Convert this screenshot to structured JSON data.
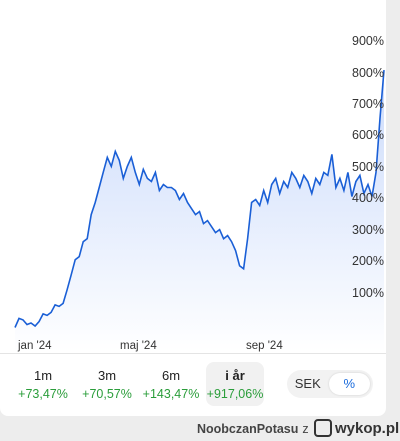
{
  "chart_data": {
    "type": "line",
    "y_unit": "%",
    "ylim": [
      -20,
      920
    ],
    "y_ticks": [
      "900%",
      "800%",
      "700%",
      "600%",
      "500%",
      "400%",
      "300%",
      "200%",
      "100%"
    ],
    "x_ticks": [
      "jan '24",
      "maj '24",
      "sep '24"
    ],
    "grid": false,
    "series": [
      {
        "x": [
          0,
          1,
          2,
          3,
          4,
          5,
          6,
          7,
          8,
          9,
          10,
          11,
          12,
          13,
          14,
          15,
          16,
          17,
          18,
          19,
          20,
          21,
          22,
          23,
          24,
          25,
          26,
          27,
          28,
          29,
          30,
          31,
          32,
          33,
          34,
          35,
          36,
          37,
          38,
          39,
          40,
          41,
          42,
          43,
          44,
          45,
          46,
          47,
          48,
          49,
          50,
          51,
          52,
          53,
          54,
          55,
          56,
          57,
          58,
          59,
          60,
          61,
          62,
          63,
          64,
          65,
          66,
          67,
          68,
          69,
          70,
          71,
          72,
          73,
          74,
          75,
          76,
          77,
          78,
          79,
          80,
          81,
          82,
          83,
          84,
          85,
          86,
          87,
          88,
          89,
          90,
          91,
          92
        ],
        "y": [
          5,
          35,
          30,
          15,
          20,
          10,
          25,
          50,
          45,
          55,
          80,
          75,
          85,
          130,
          180,
          230,
          240,
          290,
          300,
          380,
          420,
          470,
          520,
          570,
          540,
          590,
          560,
          500,
          540,
          570,
          520,
          480,
          530,
          500,
          490,
          520,
          460,
          480,
          470,
          470,
          460,
          430,
          450,
          420,
          400,
          380,
          390,
          350,
          360,
          340,
          320,
          330,
          300,
          310,
          290,
          260,
          210,
          200,
          300,
          420,
          430,
          410,
          460,
          420,
          480,
          500,
          450,
          490,
          470,
          520,
          500,
          470,
          510,
          490,
          450,
          500,
          480,
          520,
          510,
          580,
          470,
          500,
          460,
          520,
          440,
          490,
          510,
          450,
          480,
          440,
          520,
          700,
          860
        ]
      }
    ]
  },
  "periods": [
    {
      "label": "1m",
      "value": "+73,47%"
    },
    {
      "label": "3m",
      "value": "+70,57%"
    },
    {
      "label": "6m",
      "value": "+143,47%"
    },
    {
      "label": "i år",
      "value": "+917,06%"
    }
  ],
  "toggle": {
    "currency": "SEK",
    "percent": "%"
  },
  "footer": {
    "author": "NoobczanPotasu",
    "suffix": "z",
    "site": "wykop.pl"
  },
  "colors": {
    "line": "#1a5fd6",
    "fill_top": "#c7d8fb",
    "fill_bottom": "#ffffff",
    "positive": "#2a9d3a",
    "accent": "#1a6bdc"
  },
  "icons": {
    "logo": "wykop-logo-icon"
  }
}
